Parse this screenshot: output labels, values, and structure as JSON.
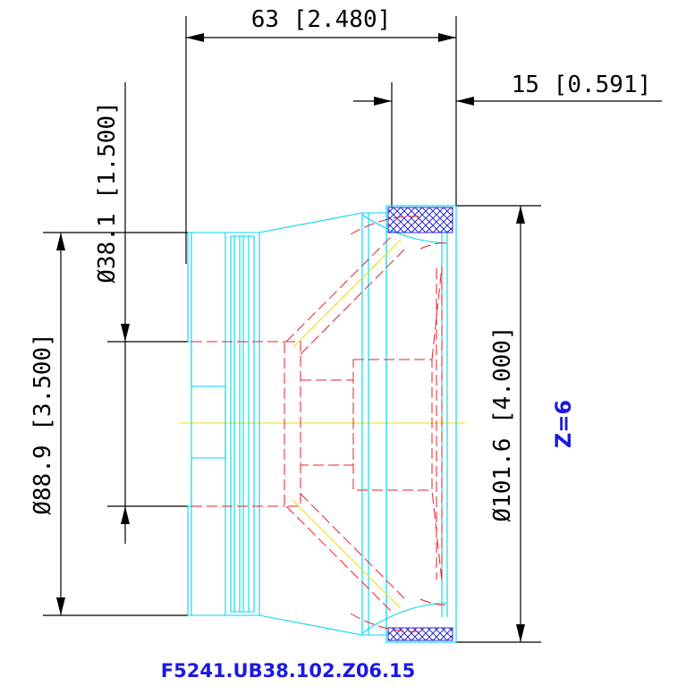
{
  "drawing": {
    "part_number": "F5241.UB38.102.Z06.15",
    "note_z": "Z=6",
    "dims": {
      "overall_length": "63 [2.480]",
      "flange_width": "15 [0.591]",
      "bore_diameter": "Ø38.1 [1.500]",
      "hub_diameter": "Ø88.9 [3.500]",
      "outer_diameter": "Ø101.6 [4.000]"
    }
  },
  "colors": {
    "outline": "#00d7f0",
    "hidden": "#e8202a",
    "center": "#e8e000",
    "dimension": "#000000",
    "note": "#1a1adf",
    "hatch": "#2a2ad0"
  }
}
